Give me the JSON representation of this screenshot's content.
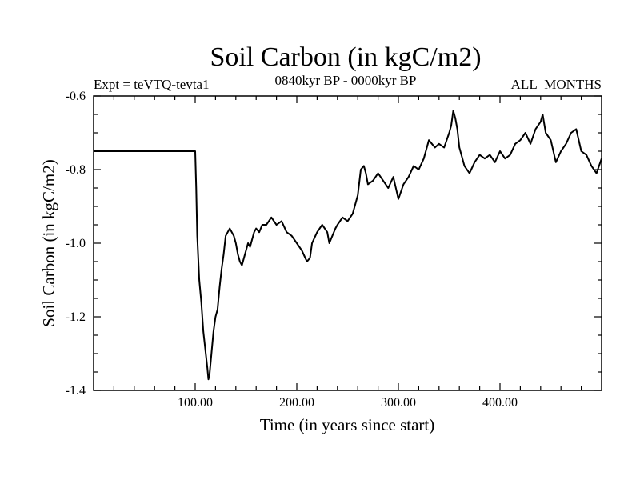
{
  "chart_data": {
    "type": "line",
    "title": "Soil Carbon (in kgC/m2)",
    "subtitle_left": "Expt = teVTQ-tevta1",
    "subtitle_center": "0840kyr BP - 0000kyr BP",
    "subtitle_right": "ALL_MONTHS",
    "xlabel": "Time (in years since start)",
    "ylabel": "Soil Carbon (in kgC/m2)",
    "xlim": [
      0,
      500
    ],
    "ylim": [
      -1.4,
      -0.6
    ],
    "x_ticks": [
      100,
      200,
      300,
      400
    ],
    "x_tick_labels": [
      "100.00",
      "200.00",
      "300.00",
      "400.00"
    ],
    "y_ticks": [
      -1.4,
      -1.2,
      -1.0,
      -0.8,
      -0.6
    ],
    "y_tick_labels": [
      "-1.4",
      "-1.2",
      "-1.0",
      "-0.8",
      "-0.6"
    ],
    "grid": false,
    "series": [
      {
        "name": "Soil Carbon",
        "color": "#000000",
        "x": [
          0,
          100,
          101,
          102,
          104,
          106,
          108,
          110,
          112,
          113,
          114,
          116,
          118,
          120,
          122,
          124,
          126,
          128,
          130,
          132,
          134,
          136,
          138,
          140,
          142,
          144,
          146,
          148,
          150,
          152,
          154,
          156,
          158,
          160,
          163,
          166,
          170,
          175,
          180,
          185,
          190,
          195,
          200,
          205,
          210,
          213,
          215,
          220,
          225,
          230,
          232,
          235,
          238,
          240,
          245,
          250,
          255,
          260,
          263,
          266,
          268,
          270,
          275,
          280,
          285,
          290,
          295,
          300,
          305,
          310,
          315,
          320,
          325,
          330,
          333,
          336,
          340,
          345,
          350,
          352,
          354,
          356,
          358,
          360,
          365,
          370,
          375,
          380,
          385,
          390,
          395,
          400,
          405,
          410,
          415,
          420,
          425,
          430,
          435,
          440,
          442,
          445,
          450,
          455,
          460,
          465,
          470,
          475,
          480,
          485,
          490,
          495,
          500
        ],
        "values": [
          -0.75,
          -0.75,
          -0.85,
          -0.98,
          -1.1,
          -1.16,
          -1.24,
          -1.29,
          -1.34,
          -1.37,
          -1.36,
          -1.3,
          -1.24,
          -1.2,
          -1.18,
          -1.12,
          -1.07,
          -1.03,
          -0.98,
          -0.97,
          -0.96,
          -0.97,
          -0.98,
          -1.0,
          -1.03,
          -1.05,
          -1.06,
          -1.04,
          -1.02,
          -1.0,
          -1.01,
          -0.99,
          -0.97,
          -0.96,
          -0.97,
          -0.95,
          -0.95,
          -0.93,
          -0.95,
          -0.94,
          -0.97,
          -0.98,
          -1.0,
          -1.02,
          -1.05,
          -1.04,
          -1.0,
          -0.97,
          -0.95,
          -0.97,
          -1.0,
          -0.98,
          -0.96,
          -0.95,
          -0.93,
          -0.94,
          -0.92,
          -0.87,
          -0.8,
          -0.79,
          -0.81,
          -0.84,
          -0.83,
          -0.81,
          -0.83,
          -0.85,
          -0.82,
          -0.88,
          -0.84,
          -0.82,
          -0.79,
          -0.8,
          -0.77,
          -0.72,
          -0.73,
          -0.74,
          -0.73,
          -0.74,
          -0.7,
          -0.68,
          -0.64,
          -0.66,
          -0.69,
          -0.74,
          -0.79,
          -0.81,
          -0.78,
          -0.76,
          -0.77,
          -0.76,
          -0.78,
          -0.75,
          -0.77,
          -0.76,
          -0.73,
          -0.72,
          -0.7,
          -0.73,
          -0.69,
          -0.67,
          -0.65,
          -0.7,
          -0.72,
          -0.78,
          -0.75,
          -0.73,
          -0.7,
          -0.69,
          -0.75,
          -0.76,
          -0.79,
          -0.81,
          -0.77
        ]
      }
    ]
  }
}
